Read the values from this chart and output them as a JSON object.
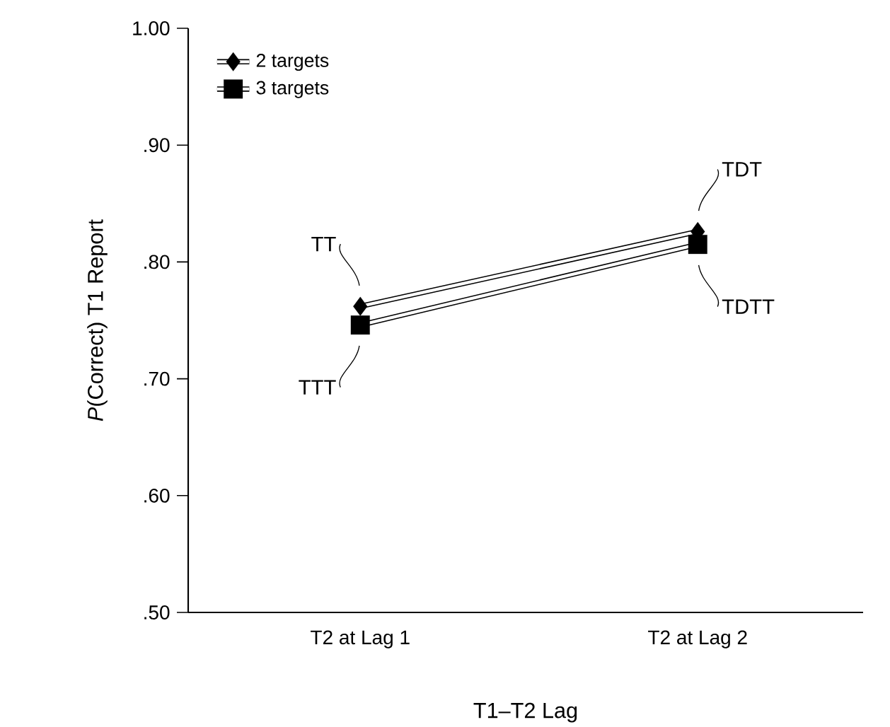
{
  "chart_data": {
    "type": "line",
    "xlabel": "T1–T2 Lag",
    "ylabel": "*P*(Correct) T1 Report",
    "categories": [
      "T2 at Lag 1",
      "T2 at Lag 2"
    ],
    "series": [
      {
        "name": "2 targets",
        "color": "#000000",
        "marker": "diamond",
        "values": [
          0.762,
          0.826
        ]
      },
      {
        "name": "3 targets",
        "color": "#000000",
        "marker": "square",
        "values": [
          0.746,
          0.815
        ]
      }
    ],
    "ylim": [
      0.5,
      1.0
    ],
    "yticks": [
      {
        "value": 0.5,
        "label": ".50"
      },
      {
        "value": 0.6,
        "label": ".60"
      },
      {
        "value": 0.7,
        "label": ".70"
      },
      {
        "value": 0.8,
        "label": ".80"
      },
      {
        "value": 0.9,
        "label": ".90"
      },
      {
        "value": 1.0,
        "label": "1.00"
      }
    ],
    "annotations": [
      {
        "text": "TT",
        "x": "T2 at Lag 1",
        "y": 0.762
      },
      {
        "text": "TTT",
        "x": "T2 at Lag 1",
        "y": 0.746
      },
      {
        "text": "TDT",
        "x": "T2 at Lag 2",
        "y": 0.826
      },
      {
        "text": "TDTT",
        "x": "T2 at Lag 2",
        "y": 0.815
      }
    ],
    "legend": "top left",
    "grid": false
  }
}
